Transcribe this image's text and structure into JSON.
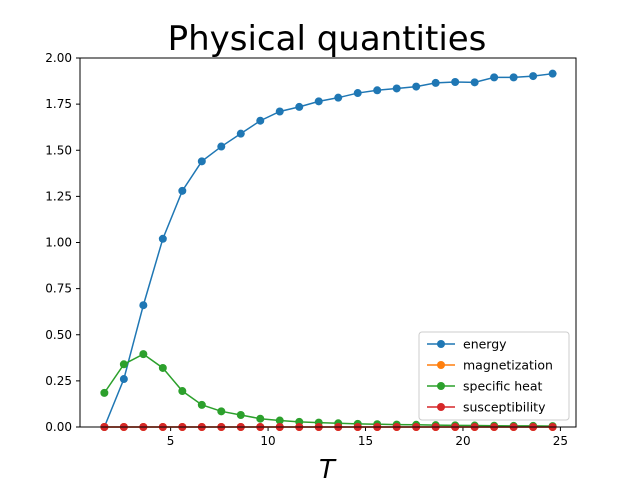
{
  "chart_data": {
    "type": "line",
    "title": "Physical quantities",
    "xlabel": "T",
    "ylabel": "",
    "xlim": [
      0.35,
      25.8
    ],
    "ylim": [
      0,
      2.0
    ],
    "xticks": [
      5,
      10,
      15,
      20,
      25
    ],
    "yticks": [
      0.0,
      0.25,
      0.5,
      0.75,
      1.0,
      1.25,
      1.5,
      1.75,
      2.0
    ],
    "xtick_labels": [
      "5",
      "10",
      "15",
      "20",
      "25"
    ],
    "ytick_labels": [
      "0.00",
      "0.25",
      "0.50",
      "0.75",
      "1.00",
      "1.25",
      "1.50",
      "1.75",
      "2.00"
    ],
    "grid": false,
    "legend_position": "lower-right",
    "x": [
      1.6,
      2.6,
      3.6,
      4.6,
      5.6,
      6.6,
      7.6,
      8.6,
      9.6,
      10.6,
      11.6,
      12.6,
      13.6,
      14.6,
      15.6,
      16.6,
      17.6,
      18.6,
      19.6,
      20.6,
      21.6,
      22.6,
      23.6,
      24.6
    ],
    "series": [
      {
        "name": "energy",
        "color": "#1f77b4",
        "values": [
          0.0,
          0.26,
          0.66,
          1.02,
          1.28,
          1.44,
          1.52,
          1.59,
          1.66,
          1.71,
          1.735,
          1.765,
          1.785,
          1.81,
          1.825,
          1.835,
          1.845,
          1.865,
          1.87,
          1.868,
          1.895,
          1.895,
          1.902,
          1.915
        ]
      },
      {
        "name": "magnetization",
        "color": "#ff7f0e",
        "values": [
          0.0,
          0.0,
          0.0,
          0.0,
          0.0,
          0.0,
          0.0,
          0.0,
          0.0,
          0.0,
          0.0,
          0.0,
          0.0,
          0.0,
          0.0,
          0.0,
          0.0,
          0.0,
          0.0,
          0.0,
          0.0,
          0.0,
          0.0,
          0.0
        ]
      },
      {
        "name": "specific heat",
        "color": "#2ca02c",
        "values": [
          0.185,
          0.34,
          0.395,
          0.32,
          0.195,
          0.12,
          0.085,
          0.065,
          0.045,
          0.035,
          0.028,
          0.024,
          0.02,
          0.017,
          0.015,
          0.013,
          0.012,
          0.01,
          0.009,
          0.008,
          0.007,
          0.006,
          0.006,
          0.005
        ]
      },
      {
        "name": "susceptibility",
        "color": "#d62728",
        "values": [
          0.0,
          0.0,
          0.0,
          0.0,
          0.0,
          0.0,
          0.0,
          0.0,
          0.0,
          0.0,
          0.0,
          0.0,
          0.0,
          0.0,
          0.0,
          0.0,
          0.0,
          0.0,
          0.0,
          0.0,
          0.0,
          0.0,
          0.0,
          0.0
        ]
      }
    ]
  }
}
